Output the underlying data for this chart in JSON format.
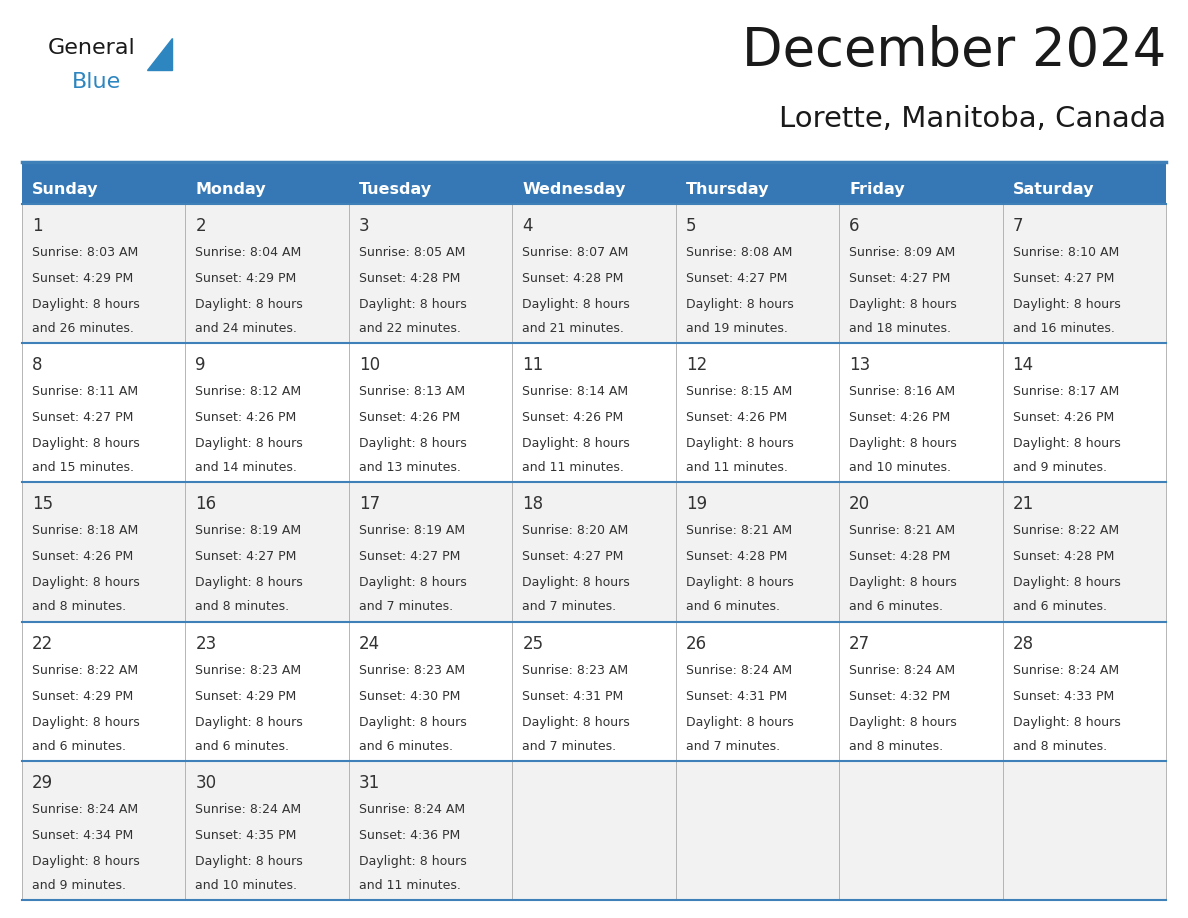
{
  "title": "December 2024",
  "subtitle": "Lorette, Manitoba, Canada",
  "header_bg_color": "#3578b5",
  "header_text_color": "#ffffff",
  "cell_bg_odd": "#f2f2f2",
  "cell_bg_even": "#ffffff",
  "cell_text_color": "#333333",
  "border_color": "#4080b8",
  "line_color_thin": "#aaaaaa",
  "days_of_week": [
    "Sunday",
    "Monday",
    "Tuesday",
    "Wednesday",
    "Thursday",
    "Friday",
    "Saturday"
  ],
  "weeks": [
    [
      {
        "day": "1",
        "sunrise": "8:03 AM",
        "sunset": "4:29 PM",
        "dl1": "Daylight: 8 hours",
        "dl2": "and 26 minutes."
      },
      {
        "day": "2",
        "sunrise": "8:04 AM",
        "sunset": "4:29 PM",
        "dl1": "Daylight: 8 hours",
        "dl2": "and 24 minutes."
      },
      {
        "day": "3",
        "sunrise": "8:05 AM",
        "sunset": "4:28 PM",
        "dl1": "Daylight: 8 hours",
        "dl2": "and 22 minutes."
      },
      {
        "day": "4",
        "sunrise": "8:07 AM",
        "sunset": "4:28 PM",
        "dl1": "Daylight: 8 hours",
        "dl2": "and 21 minutes."
      },
      {
        "day": "5",
        "sunrise": "8:08 AM",
        "sunset": "4:27 PM",
        "dl1": "Daylight: 8 hours",
        "dl2": "and 19 minutes."
      },
      {
        "day": "6",
        "sunrise": "8:09 AM",
        "sunset": "4:27 PM",
        "dl1": "Daylight: 8 hours",
        "dl2": "and 18 minutes."
      },
      {
        "day": "7",
        "sunrise": "8:10 AM",
        "sunset": "4:27 PM",
        "dl1": "Daylight: 8 hours",
        "dl2": "and 16 minutes."
      }
    ],
    [
      {
        "day": "8",
        "sunrise": "8:11 AM",
        "sunset": "4:27 PM",
        "dl1": "Daylight: 8 hours",
        "dl2": "and 15 minutes."
      },
      {
        "day": "9",
        "sunrise": "8:12 AM",
        "sunset": "4:26 PM",
        "dl1": "Daylight: 8 hours",
        "dl2": "and 14 minutes."
      },
      {
        "day": "10",
        "sunrise": "8:13 AM",
        "sunset": "4:26 PM",
        "dl1": "Daylight: 8 hours",
        "dl2": "and 13 minutes."
      },
      {
        "day": "11",
        "sunrise": "8:14 AM",
        "sunset": "4:26 PM",
        "dl1": "Daylight: 8 hours",
        "dl2": "and 11 minutes."
      },
      {
        "day": "12",
        "sunrise": "8:15 AM",
        "sunset": "4:26 PM",
        "dl1": "Daylight: 8 hours",
        "dl2": "and 11 minutes."
      },
      {
        "day": "13",
        "sunrise": "8:16 AM",
        "sunset": "4:26 PM",
        "dl1": "Daylight: 8 hours",
        "dl2": "and 10 minutes."
      },
      {
        "day": "14",
        "sunrise": "8:17 AM",
        "sunset": "4:26 PM",
        "dl1": "Daylight: 8 hours",
        "dl2": "and 9 minutes."
      }
    ],
    [
      {
        "day": "15",
        "sunrise": "8:18 AM",
        "sunset": "4:26 PM",
        "dl1": "Daylight: 8 hours",
        "dl2": "and 8 minutes."
      },
      {
        "day": "16",
        "sunrise": "8:19 AM",
        "sunset": "4:27 PM",
        "dl1": "Daylight: 8 hours",
        "dl2": "and 8 minutes."
      },
      {
        "day": "17",
        "sunrise": "8:19 AM",
        "sunset": "4:27 PM",
        "dl1": "Daylight: 8 hours",
        "dl2": "and 7 minutes."
      },
      {
        "day": "18",
        "sunrise": "8:20 AM",
        "sunset": "4:27 PM",
        "dl1": "Daylight: 8 hours",
        "dl2": "and 7 minutes."
      },
      {
        "day": "19",
        "sunrise": "8:21 AM",
        "sunset": "4:28 PM",
        "dl1": "Daylight: 8 hours",
        "dl2": "and 6 minutes."
      },
      {
        "day": "20",
        "sunrise": "8:21 AM",
        "sunset": "4:28 PM",
        "dl1": "Daylight: 8 hours",
        "dl2": "and 6 minutes."
      },
      {
        "day": "21",
        "sunrise": "8:22 AM",
        "sunset": "4:28 PM",
        "dl1": "Daylight: 8 hours",
        "dl2": "and 6 minutes."
      }
    ],
    [
      {
        "day": "22",
        "sunrise": "8:22 AM",
        "sunset": "4:29 PM",
        "dl1": "Daylight: 8 hours",
        "dl2": "and 6 minutes."
      },
      {
        "day": "23",
        "sunrise": "8:23 AM",
        "sunset": "4:29 PM",
        "dl1": "Daylight: 8 hours",
        "dl2": "and 6 minutes."
      },
      {
        "day": "24",
        "sunrise": "8:23 AM",
        "sunset": "4:30 PM",
        "dl1": "Daylight: 8 hours",
        "dl2": "and 6 minutes."
      },
      {
        "day": "25",
        "sunrise": "8:23 AM",
        "sunset": "4:31 PM",
        "dl1": "Daylight: 8 hours",
        "dl2": "and 7 minutes."
      },
      {
        "day": "26",
        "sunrise": "8:24 AM",
        "sunset": "4:31 PM",
        "dl1": "Daylight: 8 hours",
        "dl2": "and 7 minutes."
      },
      {
        "day": "27",
        "sunrise": "8:24 AM",
        "sunset": "4:32 PM",
        "dl1": "Daylight: 8 hours",
        "dl2": "and 8 minutes."
      },
      {
        "day": "28",
        "sunrise": "8:24 AM",
        "sunset": "4:33 PM",
        "dl1": "Daylight: 8 hours",
        "dl2": "and 8 minutes."
      }
    ],
    [
      {
        "day": "29",
        "sunrise": "8:24 AM",
        "sunset": "4:34 PM",
        "dl1": "Daylight: 8 hours",
        "dl2": "and 9 minutes."
      },
      {
        "day": "30",
        "sunrise": "8:24 AM",
        "sunset": "4:35 PM",
        "dl1": "Daylight: 8 hours",
        "dl2": "and 10 minutes."
      },
      {
        "day": "31",
        "sunrise": "8:24 AM",
        "sunset": "4:36 PM",
        "dl1": "Daylight: 8 hours",
        "dl2": "and 11 minutes."
      },
      null,
      null,
      null,
      null
    ]
  ],
  "logo_general_color": "#1a1a1a",
  "logo_blue_color": "#2e86c1",
  "title_color": "#1a1a1a",
  "subtitle_color": "#1a1a1a"
}
